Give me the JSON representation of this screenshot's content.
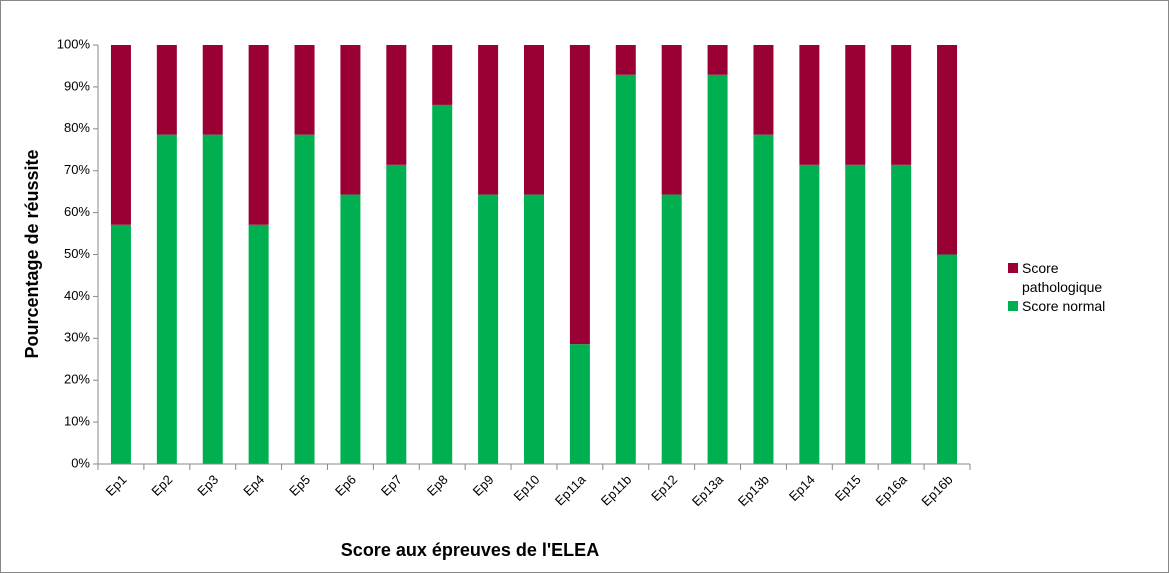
{
  "chart_data": {
    "type": "stacked_bar",
    "x_label": "Score aux épreuves de l'ELEA",
    "y_label": "Pourcentage de réussite",
    "categories": [
      "Ep1",
      "Ep2",
      "Ep3",
      "Ep4",
      "Ep5",
      "Ep6",
      "Ep7",
      "Ep8",
      "Ep9",
      "Ep10",
      "Ep11a",
      "Ep11b",
      "Ep12",
      "Ep13a",
      "Ep13b",
      "Ep14",
      "Ep15",
      "Ep16a",
      "Ep16b"
    ],
    "series": [
      {
        "name": "Score normal",
        "color": "#00b050",
        "values": [
          57.1,
          78.6,
          78.6,
          57.1,
          78.6,
          64.3,
          71.4,
          85.7,
          64.3,
          64.3,
          28.6,
          92.9,
          64.3,
          92.9,
          78.6,
          71.4,
          71.4,
          71.4,
          50
        ]
      },
      {
        "name": "Score pathologique",
        "color": "#9b0034",
        "values": [
          42.9,
          21.4,
          21.4,
          42.9,
          21.4,
          35.7,
          28.6,
          14.3,
          35.7,
          35.7,
          71.4,
          7.1,
          35.7,
          7.1,
          21.4,
          28.6,
          28.6,
          28.6,
          50
        ]
      }
    ],
    "ylim": [
      0,
      100
    ],
    "yticks": [
      {
        "value": 0,
        "label": "0%"
      },
      {
        "value": 10,
        "label": "10%"
      },
      {
        "value": 20,
        "label": "20%"
      },
      {
        "value": 30,
        "label": "30%"
      },
      {
        "value": 40,
        "label": "40%"
      },
      {
        "value": 50,
        "label": "50%"
      },
      {
        "value": 60,
        "label": "60%"
      },
      {
        "value": 70,
        "label": "70%"
      },
      {
        "value": 80,
        "label": "80%"
      },
      {
        "value": 90,
        "label": "90%"
      },
      {
        "value": 100,
        "label": "100%"
      }
    ],
    "grid": false,
    "legend": "right"
  }
}
